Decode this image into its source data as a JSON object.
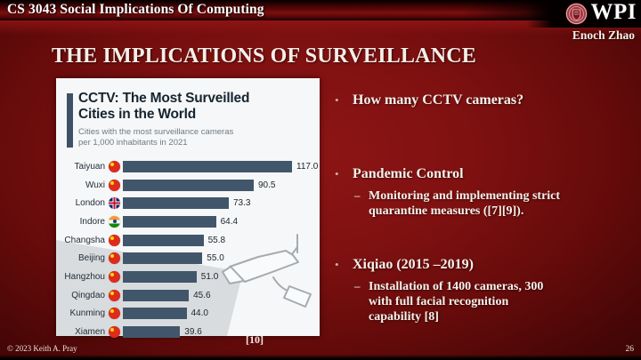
{
  "header": {
    "course_title": "CS 3043 Social Implications Of Computing",
    "logo_text": "WPI",
    "author": "Enoch Zhao"
  },
  "slide": {
    "title": "THE IMPLICATIONS OF SURVEILLANCE",
    "citation": "[10]",
    "bullets": [
      {
        "label": "How many CCTV cameras?",
        "sub": ""
      },
      {
        "label": "Pandemic Control",
        "sub": "Monitoring and implementing strict\nquarantine measures ([7][9])."
      },
      {
        "label": "Xiqiao (2015 –2019)",
        "sub": "Installation of 1400 cameras, 300\nwith full facial recognition\ncapability [8]"
      }
    ]
  },
  "footer": {
    "copyright": "© 2023 Keith A. Pray",
    "page_number": "26"
  },
  "chart_data": {
    "type": "bar",
    "orientation": "horizontal",
    "title": "CCTV: The Most Surveilled\nCities in the World",
    "subtitle": "Cities with the most surveillance cameras\nper 1,000 inhabitants in 2021",
    "categories": [
      "Taiyuan",
      "Wuxi",
      "London",
      "Indore",
      "Changsha",
      "Beijing",
      "Hangzhou",
      "Qingdao",
      "Kunming",
      "Xiamen"
    ],
    "values": [
      117.0,
      90.5,
      73.3,
      64.4,
      55.8,
      55.0,
      51.0,
      45.6,
      44.0,
      39.6
    ],
    "value_labels": [
      "117.0",
      "90.5",
      "73.3",
      "64.4",
      "55.8",
      "55.0",
      "51.0",
      "45.6",
      "44.0",
      "39.6"
    ],
    "countries": [
      "cn",
      "cn",
      "gb",
      "in",
      "cn",
      "cn",
      "cn",
      "cn",
      "cn",
      "cn"
    ],
    "xlim": [
      0,
      125
    ],
    "grid": false,
    "legend": false,
    "bar_color": "#41566b",
    "background_color": "#f6f7f8",
    "beam_color": "#d9dcde",
    "accent_color": "#3e5266"
  },
  "colors": {
    "slide_background": "#7a1010",
    "header_black": "#000000",
    "text": "#f6f1ea"
  }
}
